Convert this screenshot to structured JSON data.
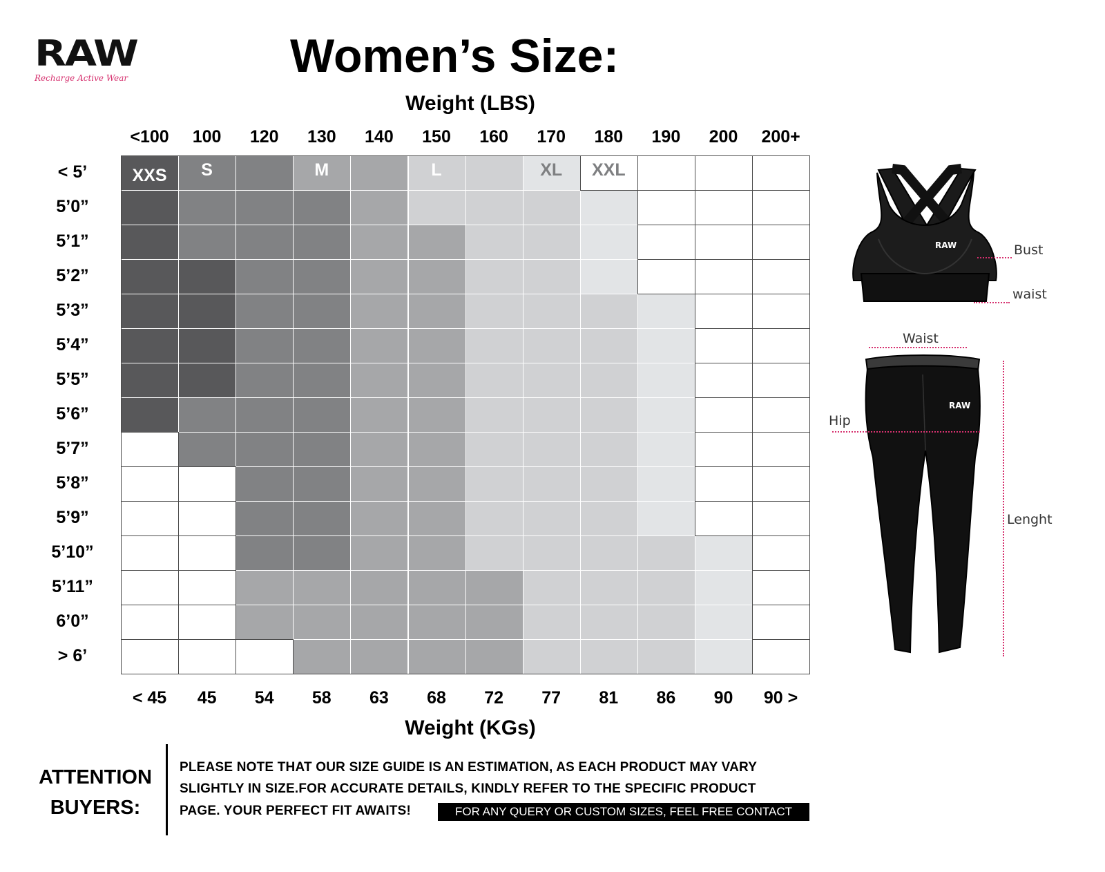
{
  "brand": {
    "wordmark": "RAW",
    "tagline": "Recharge Active Wear"
  },
  "title": "Women’s Size:",
  "weight_lbs_label": "Weight (LBS)",
  "weight_kg_label": "Weight (KGs)",
  "lbs_columns": [
    "<100",
    "100",
    "120",
    "130",
    "140",
    "150",
    "160",
    "170",
    "180",
    "190",
    "200",
    "200+"
  ],
  "kg_columns": [
    "< 45",
    "45",
    "54",
    "58",
    "63",
    "68",
    "72",
    "77",
    "81",
    "86",
    "90",
    "90 >"
  ],
  "height_rows": [
    "< 5’",
    "5’0”",
    "5’1”",
    "5’2”",
    "5’3”",
    "5’4”",
    "5’5”",
    "5’6”",
    "5’7”",
    "5’8”",
    "5’9”",
    "5’10”",
    "5’11”",
    "6’0”",
    "> 6’"
  ],
  "sizes": [
    "XXS",
    "S",
    "M",
    "L",
    "XL",
    "XXL"
  ],
  "size_colors": {
    "XXS": "#58585a",
    "S": "#818284",
    "M": "#a6a7a9",
    "L": "#d0d1d3",
    "XL": "#e2e4e6",
    "XXL": "#ffffff",
    "none": "#ffffff"
  },
  "size_matrix": [
    [
      "XXS",
      "S",
      "S",
      "M",
      "M",
      "L",
      "L",
      "XL",
      "XXL",
      "none",
      "none",
      "none"
    ],
    [
      "XXS",
      "S",
      "S",
      "S",
      "M",
      "L",
      "L",
      "L",
      "XL",
      "none",
      "none",
      "none"
    ],
    [
      "XXS",
      "S",
      "S",
      "S",
      "M",
      "M",
      "L",
      "L",
      "XL",
      "none",
      "none",
      "none"
    ],
    [
      "XXS",
      "XXS",
      "S",
      "S",
      "M",
      "M",
      "L",
      "L",
      "XL",
      "none",
      "none",
      "none"
    ],
    [
      "XXS",
      "XXS",
      "S",
      "S",
      "M",
      "M",
      "L",
      "L",
      "L",
      "XL",
      "none",
      "none"
    ],
    [
      "XXS",
      "XXS",
      "S",
      "S",
      "M",
      "M",
      "L",
      "L",
      "L",
      "XL",
      "none",
      "none"
    ],
    [
      "XXS",
      "XXS",
      "S",
      "S",
      "M",
      "M",
      "L",
      "L",
      "L",
      "XL",
      "none",
      "none"
    ],
    [
      "XXS",
      "S",
      "S",
      "S",
      "M",
      "M",
      "L",
      "L",
      "L",
      "XL",
      "none",
      "none"
    ],
    [
      "none",
      "S",
      "S",
      "S",
      "M",
      "M",
      "L",
      "L",
      "L",
      "XL",
      "none",
      "none"
    ],
    [
      "none",
      "none",
      "S",
      "S",
      "M",
      "M",
      "L",
      "L",
      "L",
      "XL",
      "none",
      "none"
    ],
    [
      "none",
      "none",
      "S",
      "S",
      "M",
      "M",
      "L",
      "L",
      "L",
      "XL",
      "none",
      "none"
    ],
    [
      "none",
      "none",
      "S",
      "S",
      "M",
      "M",
      "L",
      "L",
      "L",
      "L",
      "XL",
      "none"
    ],
    [
      "none",
      "none",
      "M",
      "M",
      "M",
      "M",
      "M",
      "L",
      "L",
      "L",
      "XL",
      "none"
    ],
    [
      "none",
      "none",
      "M",
      "M",
      "M",
      "M",
      "M",
      "L",
      "L",
      "L",
      "XL",
      "none"
    ],
    [
      "none",
      "none",
      "none",
      "M",
      "M",
      "M",
      "M",
      "L",
      "L",
      "L",
      "XL",
      "none"
    ]
  ],
  "garments": {
    "bra_logo": "RAW",
    "leggings_logo": "RAW",
    "bust_label": "Bust",
    "bra_waist_label": "waist",
    "leggings_waist_label": "Waist",
    "hip_label": "Hip",
    "length_label": "Lenght"
  },
  "attention": {
    "heading_line1": "ATTENTION",
    "heading_line2": "BUYERS:",
    "note_line1": "PLEASE NOTE THAT OUR SIZE GUIDE IS AN ESTIMATION, AS EACH PRODUCT MAY VARY",
    "note_line2": "SLIGHTLY IN SIZE.FOR ACCURATE DETAILS, KINDLY REFER TO THE SPECIFIC PRODUCT",
    "note_line3": "PAGE. YOUR PERFECT FIT AWAITS!",
    "contact": "FOR ANY QUERY OR CUSTOM SIZES, FEEL FREE CONTACT"
  }
}
